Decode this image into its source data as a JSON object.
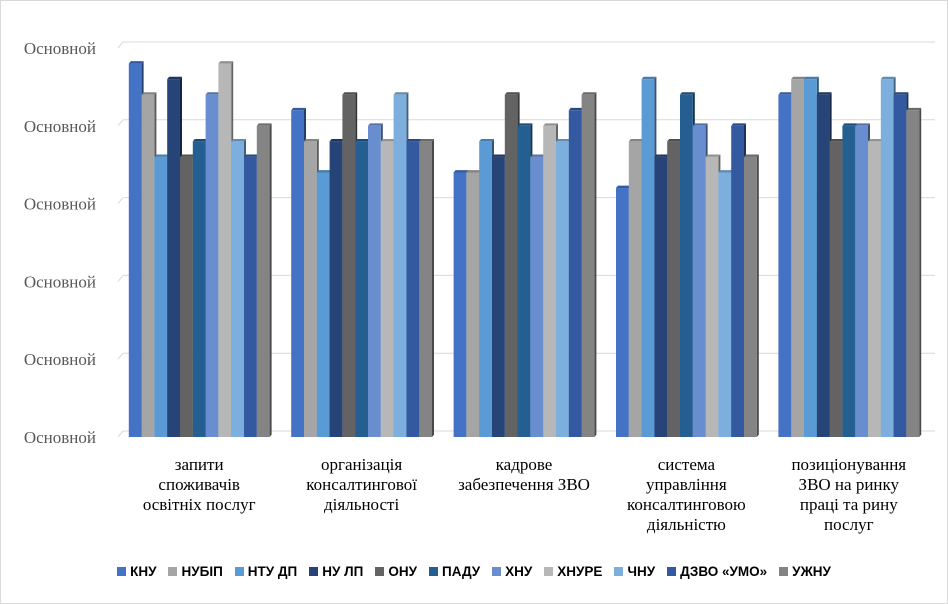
{
  "chart_data": {
    "type": "bar",
    "categories": [
      "запити\nспоживачів\nосвітніх послуг",
      "організація\nконсалтингової\nдіяльності",
      "кадрове\nзабезпечення ЗВО",
      "система\nуправління\nконсалтинговою\nдіяльністю",
      "позиціонування\nЗВО на ринку\nпраці та рину\nпослуг"
    ],
    "y_tick_labels": [
      "Основной",
      "Основной",
      "Основной",
      "Основной",
      "Основной",
      "Основной"
    ],
    "ylim": [
      0,
      5
    ],
    "grid": true,
    "legend_position": "bottom",
    "series": [
      {
        "name": "КНУ",
        "color": "#4472C4",
        "values": [
          4.8,
          4.2,
          3.4,
          3.2,
          4.4
        ]
      },
      {
        "name": "НУБІП",
        "color": "#A5A5A5",
        "values": [
          4.4,
          3.8,
          3.4,
          3.8,
          4.6
        ]
      },
      {
        "name": "НТУ ДП",
        "color": "#5B9BD5",
        "values": [
          3.6,
          3.4,
          3.8,
          4.6,
          4.6
        ]
      },
      {
        "name": "НУ ЛП",
        "color": "#264478",
        "values": [
          4.6,
          3.8,
          3.6,
          3.6,
          4.4
        ]
      },
      {
        "name": "ОНУ",
        "color": "#636363",
        "values": [
          3.6,
          4.4,
          4.4,
          3.8,
          3.8
        ]
      },
      {
        "name": "ПАДУ",
        "color": "#255E91",
        "values": [
          3.8,
          3.8,
          4.0,
          4.4,
          4.0
        ]
      },
      {
        "name": "ХНУ",
        "color": "#698ED0",
        "values": [
          4.4,
          4.0,
          3.6,
          4.0,
          4.0
        ]
      },
      {
        "name": "ХНУРЕ",
        "color": "#B7B7B7",
        "values": [
          4.8,
          3.8,
          4.0,
          3.6,
          3.8
        ]
      },
      {
        "name": "ЧНУ",
        "color": "#7CAFDD",
        "values": [
          3.8,
          4.4,
          3.8,
          3.4,
          4.6
        ]
      },
      {
        "name": "ДЗВО «УМО»",
        "color": "#335AA1",
        "values": [
          3.6,
          3.8,
          4.2,
          4.0,
          4.4
        ]
      },
      {
        "name": "УЖНУ",
        "color": "#848484",
        "values": [
          4.0,
          3.8,
          4.4,
          3.6,
          4.2
        ]
      }
    ]
  }
}
